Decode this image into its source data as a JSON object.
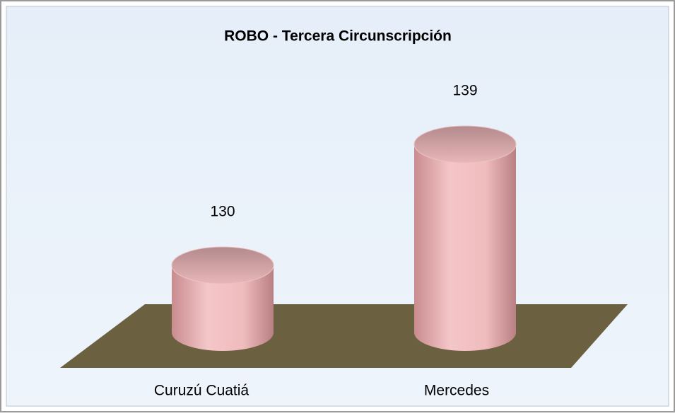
{
  "chart_data": {
    "type": "bar",
    "title": "ROBO - Tercera Circunscripción",
    "categories": [
      "Curuzú Cuatiá",
      "Mercedes"
    ],
    "values": [
      130,
      139
    ],
    "color": "#ecb3b5",
    "ylim": [
      125,
      145
    ]
  }
}
